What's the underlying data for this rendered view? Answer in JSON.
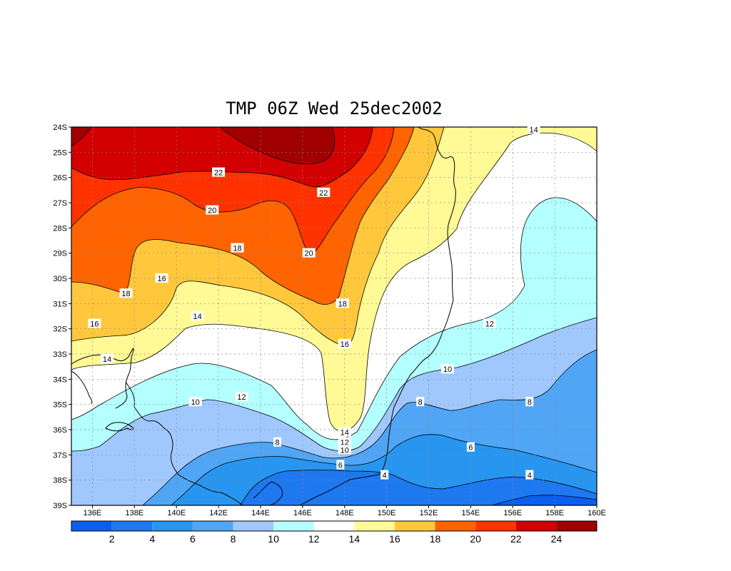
{
  "title": "TMP 06Z Wed 25dec2002",
  "chart_data": {
    "type": "heatmap",
    "variable": "TMP",
    "xlim": [
      135,
      160
    ],
    "ylim": [
      -39,
      -24
    ],
    "x_ticks": [
      {
        "value": 136,
        "label": "136E"
      },
      {
        "value": 138,
        "label": "138E"
      },
      {
        "value": 140,
        "label": "140E"
      },
      {
        "value": 142,
        "label": "142E"
      },
      {
        "value": 144,
        "label": "144E"
      },
      {
        "value": 146,
        "label": "146E"
      },
      {
        "value": 148,
        "label": "148E"
      },
      {
        "value": 150,
        "label": "150E"
      },
      {
        "value": 152,
        "label": "152E"
      },
      {
        "value": 154,
        "label": "154E"
      },
      {
        "value": 156,
        "label": "156E"
      },
      {
        "value": 158,
        "label": "158E"
      },
      {
        "value": 160,
        "label": "160E"
      }
    ],
    "y_ticks": [
      {
        "value": -24,
        "label": "24S"
      },
      {
        "value": -25,
        "label": "25S"
      },
      {
        "value": -26,
        "label": "26S"
      },
      {
        "value": -27,
        "label": "27S"
      },
      {
        "value": -28,
        "label": "28S"
      },
      {
        "value": -29,
        "label": "29S"
      },
      {
        "value": -30,
        "label": "30S"
      },
      {
        "value": -31,
        "label": "31S"
      },
      {
        "value": -32,
        "label": "32S"
      },
      {
        "value": -33,
        "label": "33S"
      },
      {
        "value": -34,
        "label": "34S"
      },
      {
        "value": -35,
        "label": "35S"
      },
      {
        "value": -36,
        "label": "36S"
      },
      {
        "value": -37,
        "label": "37S"
      },
      {
        "value": -38,
        "label": "38S"
      },
      {
        "value": -39,
        "label": "39S"
      }
    ],
    "grid": true,
    "colorbar": {
      "levels": [
        2,
        4,
        6,
        8,
        10,
        12,
        14,
        16,
        18,
        20,
        22,
        24
      ],
      "labels": [
        "2",
        "4",
        "6",
        "8",
        "10",
        "12",
        "14",
        "16",
        "18",
        "20",
        "22",
        "24"
      ],
      "colors": [
        "#0a5ff0",
        "#1e78f0",
        "#2896f0",
        "#50a5f5",
        "#a0c8ff",
        "#b4ffff",
        "#ffffff",
        "#fffa96",
        "#ffc83c",
        "#ff6400",
        "#ff3200",
        "#d20000",
        "#a00000"
      ]
    },
    "contour_labels": [
      {
        "text": "22",
        "lon": 142.0,
        "lat": -25.8
      },
      {
        "text": "22",
        "lon": 147.0,
        "lat": -26.6
      },
      {
        "text": "20",
        "lon": 141.7,
        "lat": -27.3
      },
      {
        "text": "20",
        "lon": 146.3,
        "lat": -29.0
      },
      {
        "text": "18",
        "lon": 142.9,
        "lat": -28.8
      },
      {
        "text": "18",
        "lon": 137.6,
        "lat": -30.6
      },
      {
        "text": "18",
        "lon": 147.9,
        "lat": -31.0
      },
      {
        "text": "16",
        "lon": 139.3,
        "lat": -30.0
      },
      {
        "text": "16",
        "lon": 136.1,
        "lat": -31.8
      },
      {
        "text": "16",
        "lon": 148.0,
        "lat": -32.6
      },
      {
        "text": "14",
        "lon": 141.0,
        "lat": -31.5
      },
      {
        "text": "14",
        "lon": 136.7,
        "lat": -33.2
      },
      {
        "text": "14",
        "lon": 148.0,
        "lat": -36.1
      },
      {
        "text": "14",
        "lon": 157.0,
        "lat": -24.1
      },
      {
        "text": "12",
        "lon": 143.1,
        "lat": -34.7
      },
      {
        "text": "12",
        "lon": 148.0,
        "lat": -36.5
      },
      {
        "text": "12",
        "lon": 154.9,
        "lat": -31.8
      },
      {
        "text": "10",
        "lon": 140.9,
        "lat": -34.9
      },
      {
        "text": "10",
        "lon": 148.0,
        "lat": -36.8
      },
      {
        "text": "10",
        "lon": 152.9,
        "lat": -33.6
      },
      {
        "text": "8",
        "lon": 144.8,
        "lat": -36.5
      },
      {
        "text": "8",
        "lon": 151.6,
        "lat": -34.9
      },
      {
        "text": "8",
        "lon": 156.8,
        "lat": -34.9
      },
      {
        "text": "6",
        "lon": 147.8,
        "lat": -37.4
      },
      {
        "text": "6",
        "lon": 154.0,
        "lat": -36.7
      },
      {
        "text": "4",
        "lon": 149.9,
        "lat": -37.8
      },
      {
        "text": "4",
        "lon": 156.8,
        "lat": -37.8
      }
    ]
  }
}
